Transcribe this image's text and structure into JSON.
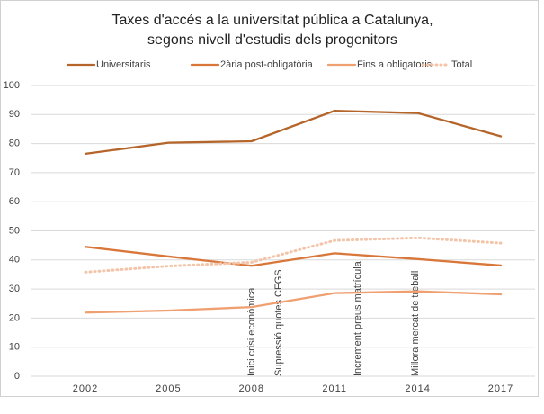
{
  "chart_data": {
    "type": "line",
    "title": [
      "Taxes d'accés a la universitat pública a Catalunya,",
      "segons nivell d'estudis dels progenitors"
    ],
    "categories": [
      "2002",
      "2005",
      "2008",
      "2011",
      "2014",
      "2017"
    ],
    "series": [
      {
        "name": "Universitaris",
        "color": "#b5652a",
        "dash": "solid",
        "values": [
          76.5,
          80.3,
          80.8,
          91.3,
          90.5,
          82.5
        ]
      },
      {
        "name": "2ària post-obligatòria",
        "color": "#d9773a",
        "dash": "solid",
        "values": [
          44.5,
          41.2,
          38,
          42.3,
          40.3,
          38.1
        ]
      },
      {
        "name": "Fins a obligatoris",
        "color": "#f0a070",
        "dash": "solid",
        "values": [
          21.9,
          22.6,
          23.8,
          28.6,
          29.2,
          28.2
        ]
      },
      {
        "name": "Total",
        "color": "#f3c4a8",
        "dash": "dotted",
        "values": [
          35.8,
          37.9,
          39.2,
          46.7,
          47.6,
          45.8
        ]
      }
    ],
    "annotations": [
      "Inici crisi econòmica",
      "Supressió quotes CFGS",
      "Increment preus matrícula",
      "Millora mercat de treball"
    ],
    "ylim": [
      0,
      100
    ],
    "yticks": [
      0,
      10,
      20,
      30,
      40,
      50,
      60,
      70,
      80,
      90,
      100
    ],
    "grid": true,
    "legend": "top"
  }
}
